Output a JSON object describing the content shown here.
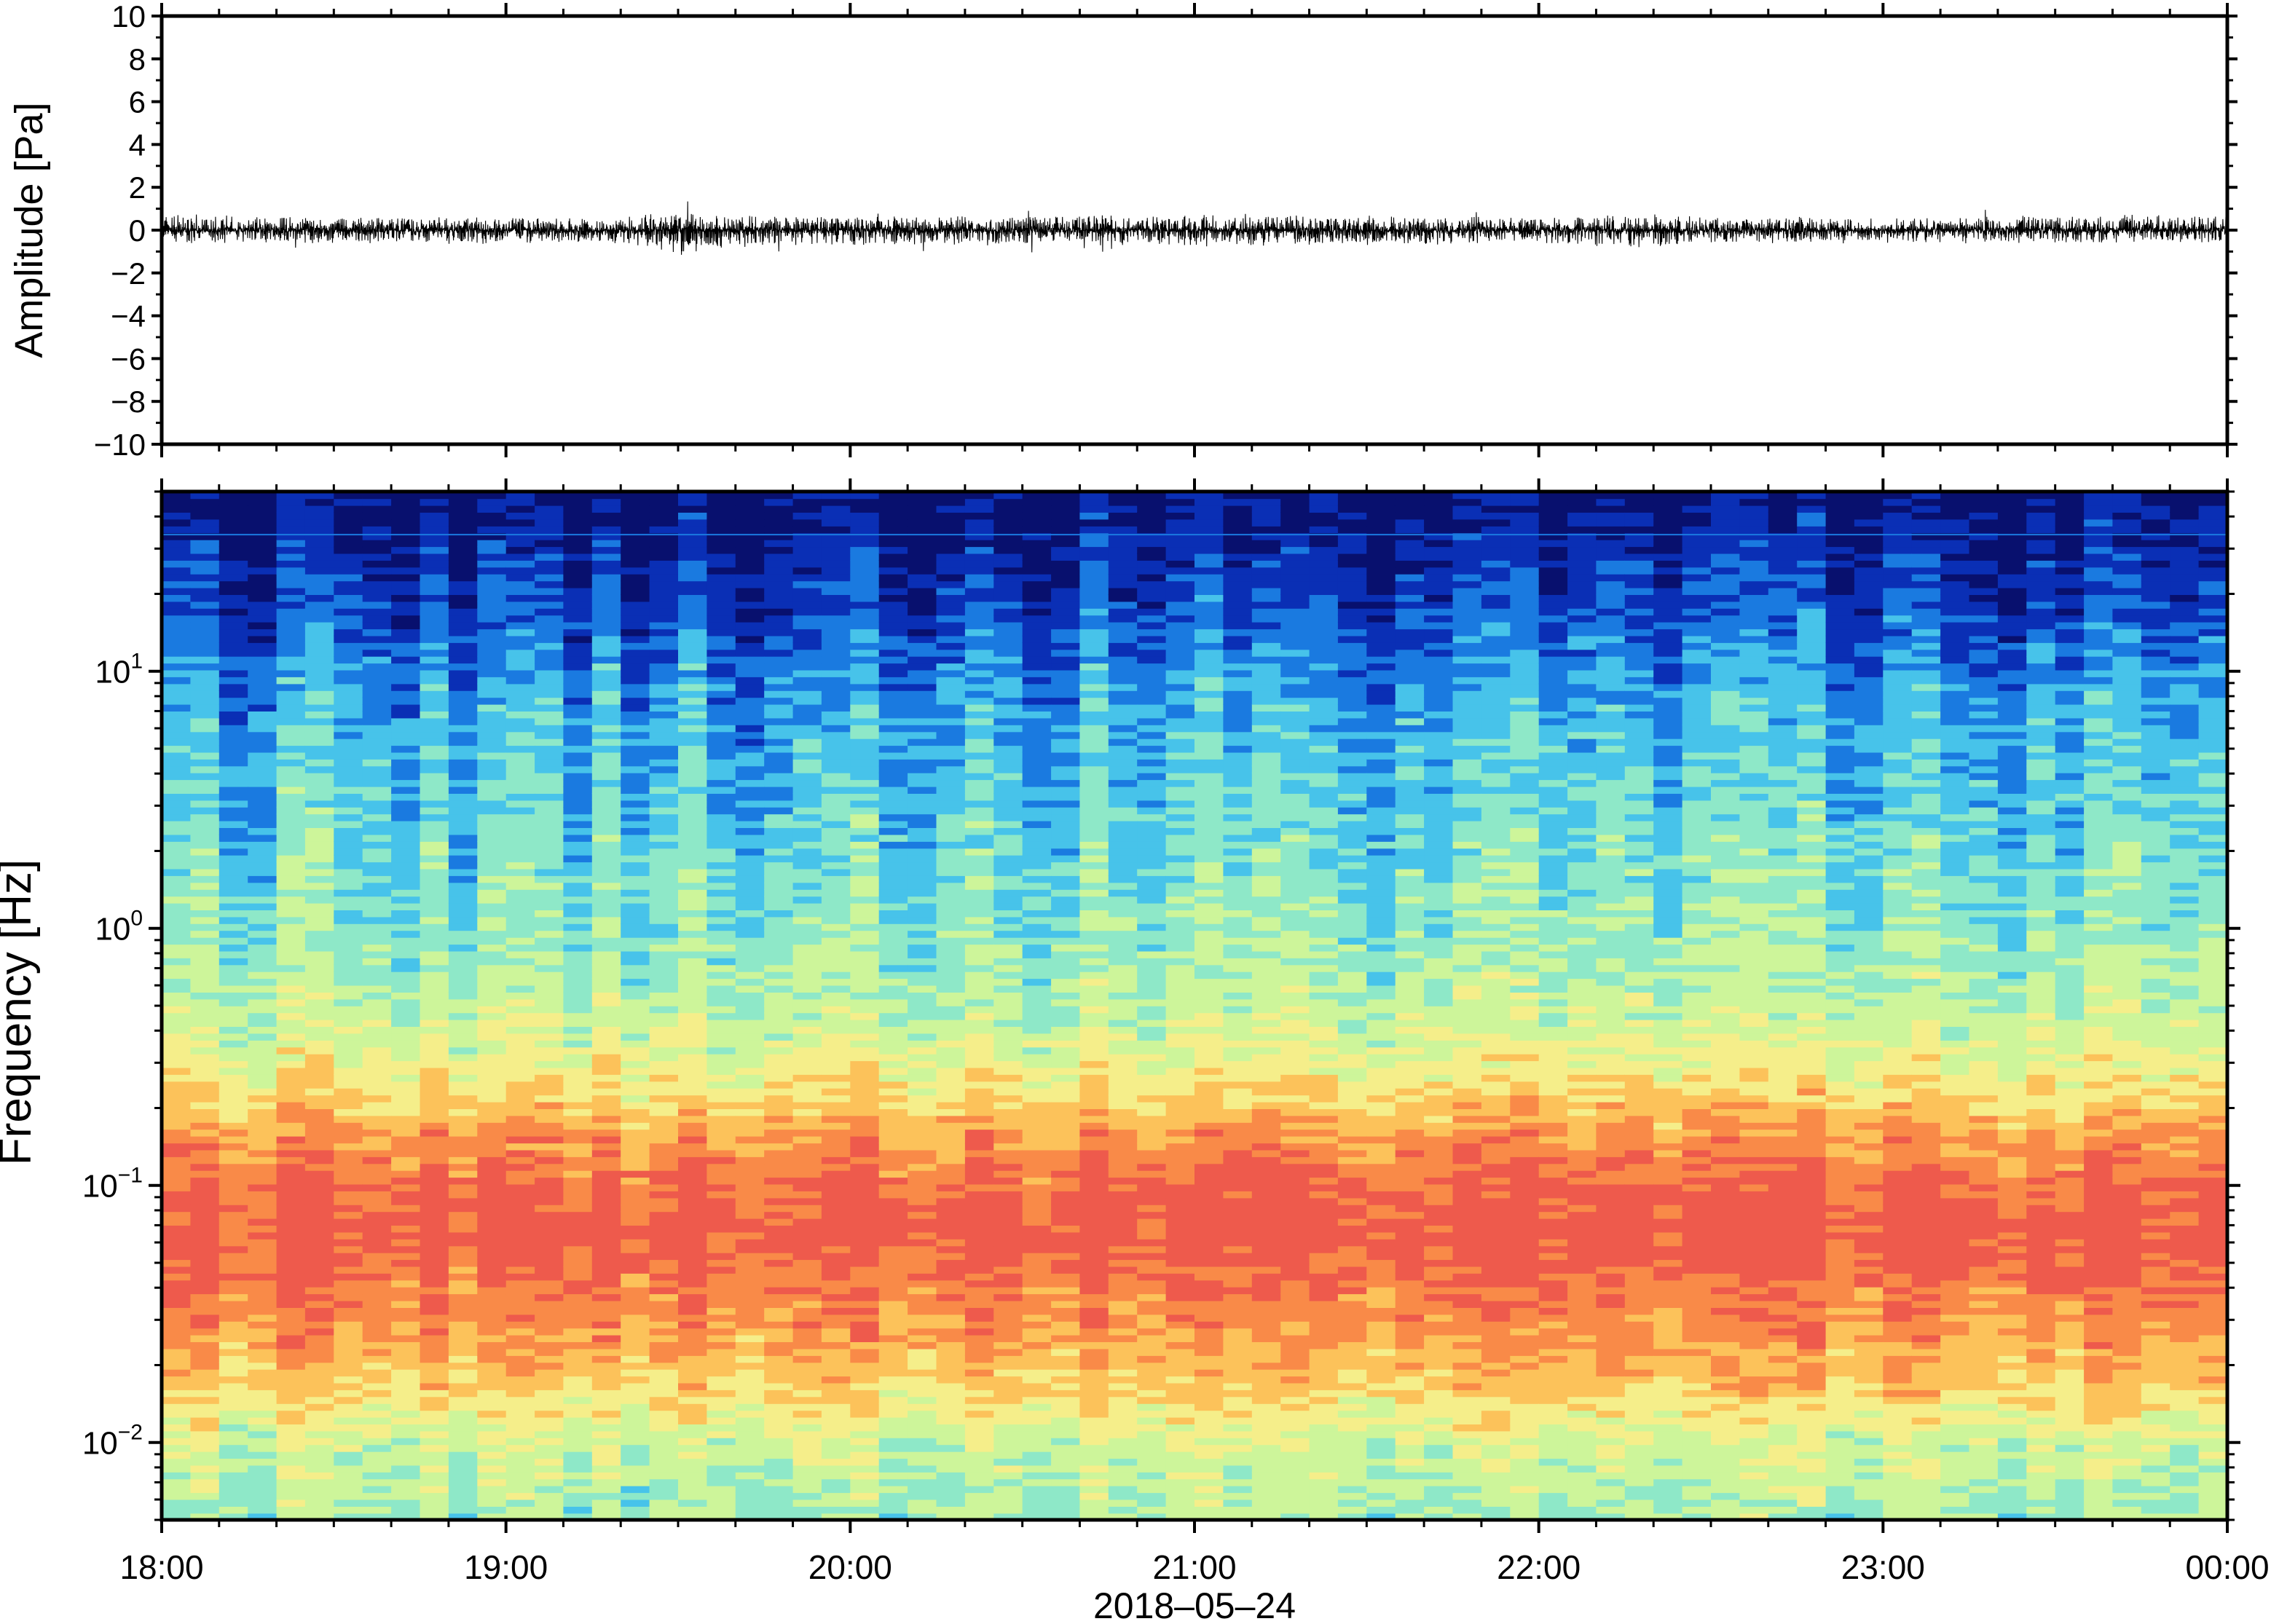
{
  "chart_data": [
    {
      "type": "line",
      "ylabel": "Amplitude [Pa]",
      "ylim": [
        -10,
        10
      ],
      "yticks": [
        "10",
        "8",
        "6",
        "4",
        "2",
        "0",
        "−2",
        "−4",
        "−6",
        "−8",
        "−10"
      ],
      "ytick_values": [
        10,
        8,
        6,
        4,
        2,
        0,
        -2,
        -4,
        -6,
        -8,
        -10
      ],
      "xlim": [
        "18:00",
        "00:00"
      ],
      "grid": false,
      "series_color": "#000000",
      "envelope": {
        "description_hours": [
          18.0,
          18.5,
          19.0,
          19.3,
          19.4,
          19.5,
          19.6,
          20.0,
          20.5,
          21.0,
          21.5,
          22.0,
          22.3,
          22.5,
          23.0,
          23.5,
          24.0
        ],
        "upper": [
          1.3,
          1.0,
          1.0,
          0.9,
          1.3,
          1.4,
          1.1,
          1.1,
          1.1,
          1.3,
          1.1,
          1.0,
          1.3,
          1.0,
          1.0,
          1.1,
          1.3
        ],
        "lower": [
          -1.0,
          -1.0,
          -1.1,
          -1.0,
          -1.4,
          -2.1,
          -1.4,
          -1.2,
          -1.1,
          -1.3,
          -1.2,
          -1.0,
          -1.5,
          -1.0,
          -1.0,
          -1.0,
          -1.0
        ]
      }
    },
    {
      "type": "heatmap",
      "ylabel": "Frequency [Hz]",
      "xlabel": "2018–05–24",
      "xticks": [
        "18:00",
        "19:00",
        "20:00",
        "21:00",
        "22:00",
        "23:00",
        "00:00"
      ],
      "ylim": [
        0.005,
        50
      ],
      "yscale": "log",
      "yticks": [
        {
          "base": "10",
          "exp": "1",
          "value": 10
        },
        {
          "base": "10",
          "exp": "0",
          "value": 1
        },
        {
          "base": "10",
          "exp": "−1",
          "value": 0.1
        },
        {
          "base": "10",
          "exp": "−2",
          "value": 0.01
        }
      ],
      "colormap": [
        "#08106e",
        "#0a2fb5",
        "#1a7ae0",
        "#47c3ea",
        "#8ee8c8",
        "#cdf59a",
        "#f5ee8a",
        "#fcc25a",
        "#f98a48",
        "#ee5a4c"
      ],
      "profile": {
        "log10_freq": [
          1.7,
          1.5,
          1.2,
          1.0,
          0.7,
          0.3,
          0.0,
          -0.3,
          -0.5,
          -0.65,
          -0.8,
          -1.0,
          -1.2,
          -1.4,
          -1.6,
          -1.8,
          -2.0,
          -2.3
        ],
        "level": [
          0.0,
          0.6,
          1.5,
          2.3,
          3.0,
          3.6,
          4.1,
          4.8,
          5.6,
          6.5,
          7.6,
          8.7,
          9.1,
          8.4,
          7.6,
          6.6,
          5.2,
          4.4
        ]
      }
    }
  ]
}
